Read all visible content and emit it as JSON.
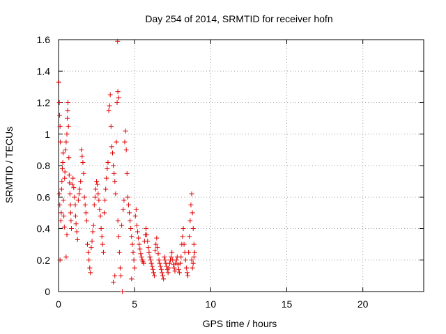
{
  "chart_data": {
    "type": "scatter",
    "title": "Day 254 of 2014, SRMTID for receiver hofn",
    "xlabel": "GPS time / hours",
    "ylabel": "SRMTID / TECUs",
    "xlim": [
      0,
      24
    ],
    "ylim": [
      0,
      1.6
    ],
    "xticks": [
      0,
      5,
      10,
      15,
      20
    ],
    "yticks": [
      0,
      0.2,
      0.4,
      0.6,
      0.8,
      1.0,
      1.2,
      1.4,
      1.6
    ],
    "ytick_labels": [
      "0",
      "0.2",
      "0.4",
      "0.6",
      "0.8",
      "1",
      "1.2",
      "1.4",
      "1.6"
    ],
    "grid": true,
    "marker": "+",
    "color": "#e00000",
    "series": [
      {
        "name": "hofn",
        "points": [
          [
            0.02,
            1.33
          ],
          [
            0.05,
            1.2
          ],
          [
            0.07,
            1.12
          ],
          [
            0.1,
            1.05
          ],
          [
            0.12,
            0.95
          ],
          [
            0.05,
            0.62
          ],
          [
            0.08,
            0.55
          ],
          [
            0.1,
            0.2
          ],
          [
            0.15,
            0.45
          ],
          [
            0.18,
            0.5
          ],
          [
            0.2,
            0.65
          ],
          [
            0.22,
            0.7
          ],
          [
            0.25,
            0.78
          ],
          [
            0.28,
            0.82
          ],
          [
            0.3,
            0.88
          ],
          [
            0.32,
            0.58
          ],
          [
            0.35,
            0.48
          ],
          [
            0.38,
            0.41
          ],
          [
            0.4,
            0.72
          ],
          [
            0.42,
            0.76
          ],
          [
            0.45,
            0.9
          ],
          [
            0.5,
            0.95
          ],
          [
            0.55,
            1.0
          ],
          [
            0.58,
            1.1
          ],
          [
            0.6,
            1.15
          ],
          [
            0.62,
            1.2
          ],
          [
            0.65,
            1.05
          ],
          [
            0.68,
            0.85
          ],
          [
            0.7,
            0.74
          ],
          [
            0.72,
            0.69
          ],
          [
            0.75,
            0.62
          ],
          [
            0.78,
            0.55
          ],
          [
            0.8,
            0.5
          ],
          [
            0.82,
            0.45
          ],
          [
            0.85,
            0.4
          ],
          [
            0.9,
            0.68
          ],
          [
            0.95,
            0.72
          ],
          [
            1.0,
            0.66
          ],
          [
            1.05,
            0.6
          ],
          [
            1.1,
            0.55
          ],
          [
            0.5,
            0.22
          ],
          [
            0.55,
            0.36
          ],
          [
            1.12,
            0.48
          ],
          [
            1.15,
            0.43
          ],
          [
            1.2,
            0.38
          ],
          [
            1.25,
            0.33
          ],
          [
            1.3,
            0.58
          ],
          [
            1.35,
            0.62
          ],
          [
            1.4,
            0.65
          ],
          [
            1.45,
            0.7
          ],
          [
            1.5,
            0.9
          ],
          [
            1.55,
            0.86
          ],
          [
            1.6,
            0.82
          ],
          [
            1.65,
            0.75
          ],
          [
            1.7,
            0.6
          ],
          [
            1.75,
            0.55
          ],
          [
            1.8,
            0.5
          ],
          [
            1.85,
            0.45
          ],
          [
            1.9,
            0.3
          ],
          [
            1.95,
            0.25
          ],
          [
            2.0,
            0.2
          ],
          [
            2.05,
            0.15
          ],
          [
            2.1,
            0.12
          ],
          [
            2.15,
            0.28
          ],
          [
            2.2,
            0.32
          ],
          [
            2.25,
            0.38
          ],
          [
            2.3,
            0.42
          ],
          [
            2.35,
            0.55
          ],
          [
            2.4,
            0.6
          ],
          [
            2.45,
            0.65
          ],
          [
            2.5,
            0.7
          ],
          [
            2.55,
            0.68
          ],
          [
            2.6,
            0.62
          ],
          [
            2.65,
            0.58
          ],
          [
            2.7,
            0.52
          ],
          [
            2.75,
            0.48
          ],
          [
            2.8,
            0.4
          ],
          [
            2.85,
            0.35
          ],
          [
            2.9,
            0.3
          ],
          [
            2.95,
            0.25
          ],
          [
            3.0,
            0.5
          ],
          [
            3.05,
            0.58
          ],
          [
            3.1,
            0.65
          ],
          [
            3.15,
            0.72
          ],
          [
            3.2,
            0.78
          ],
          [
            3.25,
            0.82
          ],
          [
            3.3,
            1.15
          ],
          [
            3.35,
            1.18
          ],
          [
            3.4,
            1.25
          ],
          [
            3.45,
            1.05
          ],
          [
            3.5,
            0.92
          ],
          [
            3.55,
            0.88
          ],
          [
            3.6,
            0.8
          ],
          [
            3.65,
            0.75
          ],
          [
            3.7,
            0.7
          ],
          [
            3.75,
            0.62
          ],
          [
            3.8,
            0.95
          ],
          [
            3.85,
            1.2
          ],
          [
            3.9,
            1.27
          ],
          [
            3.95,
            1.23
          ],
          [
            3.88,
            1.59
          ],
          [
            3.9,
            0.45
          ],
          [
            3.95,
            0.35
          ],
          [
            4.0,
            0.25
          ],
          [
            4.05,
            0.15
          ],
          [
            4.1,
            0.1
          ],
          [
            3.7,
            0.1
          ],
          [
            3.6,
            0.06
          ],
          [
            4.15,
            0.42
          ],
          [
            4.2,
            0.0
          ],
          [
            4.25,
            0.52
          ],
          [
            4.3,
            0.58
          ],
          [
            4.35,
            0.95
          ],
          [
            4.4,
            1.02
          ],
          [
            4.45,
            0.9
          ],
          [
            4.5,
            0.75
          ],
          [
            4.55,
            0.6
          ],
          [
            4.6,
            0.55
          ],
          [
            4.65,
            0.5
          ],
          [
            4.7,
            0.45
          ],
          [
            4.75,
            0.4
          ],
          [
            4.8,
            0.35
          ],
          [
            4.85,
            0.3
          ],
          [
            4.9,
            0.25
          ],
          [
            4.95,
            0.2
          ],
          [
            5.0,
            0.15
          ],
          [
            4.8,
            0.08
          ],
          [
            5.05,
            0.48
          ],
          [
            5.1,
            0.52
          ],
          [
            5.15,
            0.42
          ],
          [
            5.2,
            0.38
          ],
          [
            5.25,
            0.34
          ],
          [
            5.3,
            0.3
          ],
          [
            5.35,
            0.27
          ],
          [
            5.4,
            0.24
          ],
          [
            5.45,
            0.22
          ],
          [
            5.5,
            0.2
          ],
          [
            5.55,
            0.19
          ],
          [
            5.6,
            0.18
          ],
          [
            5.65,
            0.32
          ],
          [
            5.7,
            0.36
          ],
          [
            5.75,
            0.4
          ],
          [
            5.8,
            0.36
          ],
          [
            5.85,
            0.32
          ],
          [
            5.9,
            0.28
          ],
          [
            5.95,
            0.25
          ],
          [
            6.0,
            0.22
          ],
          [
            6.05,
            0.2
          ],
          [
            6.1,
            0.18
          ],
          [
            6.15,
            0.16
          ],
          [
            6.2,
            0.14
          ],
          [
            6.25,
            0.12
          ],
          [
            6.3,
            0.1
          ],
          [
            6.35,
            0.26
          ],
          [
            6.4,
            0.3
          ],
          [
            6.45,
            0.34
          ],
          [
            6.5,
            0.28
          ],
          [
            6.55,
            0.24
          ],
          [
            6.6,
            0.2
          ],
          [
            6.65,
            0.18
          ],
          [
            6.7,
            0.16
          ],
          [
            6.75,
            0.14
          ],
          [
            6.8,
            0.12
          ],
          [
            6.85,
            0.1
          ],
          [
            6.9,
            0.08
          ],
          [
            6.95,
            0.22
          ],
          [
            7.0,
            0.2
          ],
          [
            7.05,
            0.18
          ],
          [
            7.1,
            0.16
          ],
          [
            7.15,
            0.14
          ],
          [
            7.2,
            0.12
          ],
          [
            7.25,
            0.15
          ],
          [
            7.3,
            0.18
          ],
          [
            7.35,
            0.2
          ],
          [
            7.4,
            0.22
          ],
          [
            7.45,
            0.25
          ],
          [
            7.5,
            0.2
          ],
          [
            7.55,
            0.17
          ],
          [
            7.6,
            0.15
          ],
          [
            7.65,
            0.13
          ],
          [
            7.7,
            0.18
          ],
          [
            7.75,
            0.2
          ],
          [
            7.8,
            0.22
          ],
          [
            7.85,
            0.17
          ],
          [
            7.9,
            0.14
          ],
          [
            7.95,
            0.12
          ],
          [
            8.0,
            0.18
          ],
          [
            8.05,
            0.22
          ],
          [
            8.1,
            0.3
          ],
          [
            8.15,
            0.35
          ],
          [
            8.2,
            0.4
          ],
          [
            8.25,
            0.3
          ],
          [
            8.3,
            0.25
          ],
          [
            8.35,
            0.2
          ],
          [
            8.4,
            0.15
          ],
          [
            8.45,
            0.12
          ],
          [
            8.5,
            0.1
          ],
          [
            8.55,
            0.25
          ],
          [
            8.6,
            0.35
          ],
          [
            8.65,
            0.45
          ],
          [
            8.7,
            0.55
          ],
          [
            8.75,
            0.62
          ],
          [
            8.8,
            0.5
          ],
          [
            8.85,
            0.4
          ],
          [
            8.9,
            0.3
          ],
          [
            8.95,
            0.25
          ],
          [
            8.9,
            0.22
          ],
          [
            8.85,
            0.18
          ],
          [
            8.8,
            0.15
          ],
          [
            8.75,
            0.2
          ]
        ]
      }
    ]
  }
}
